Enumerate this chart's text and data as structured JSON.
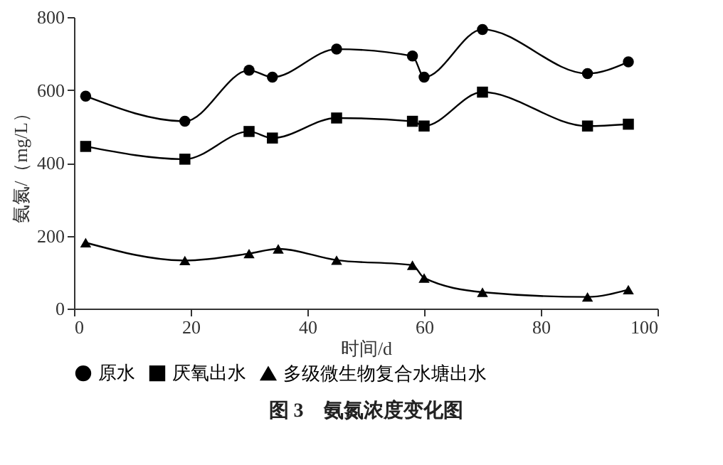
{
  "chart_data": {
    "type": "line",
    "title": "图 3　氨氮浓度变化图",
    "xlabel": "时间/d",
    "ylabel": "氨氮/（mg/L）",
    "xlim": [
      0,
      100
    ],
    "xticks": [
      0,
      20,
      40,
      60,
      80,
      100
    ],
    "ylim": [
      0,
      800
    ],
    "yticks": [
      0,
      200,
      400,
      600,
      800
    ],
    "grid": false,
    "legend": "bottom",
    "series": [
      {
        "name": "原水",
        "color": "#000000",
        "marker": "circle",
        "x": [
          2,
          19,
          30,
          34,
          45,
          58,
          60,
          70,
          88,
          95
        ],
        "values": [
          583,
          514,
          654,
          635,
          712,
          693,
          635,
          766,
          645,
          677
        ]
      },
      {
        "name": "厌氧出水",
        "color": "#000000",
        "marker": "square",
        "x": [
          2,
          19,
          30,
          34,
          45,
          58,
          60,
          70,
          88,
          95
        ],
        "values": [
          445,
          410,
          486,
          468,
          523,
          514,
          501,
          594,
          501,
          506
        ]
      },
      {
        "name": "多级微生物复合水塘出水",
        "color": "#000000",
        "marker": "triangle",
        "x": [
          2,
          19,
          30,
          35,
          45,
          58,
          60,
          70,
          88,
          95
        ],
        "values": [
          181,
          132,
          151,
          164,
          133,
          119,
          84,
          45,
          32,
          52
        ]
      }
    ]
  }
}
